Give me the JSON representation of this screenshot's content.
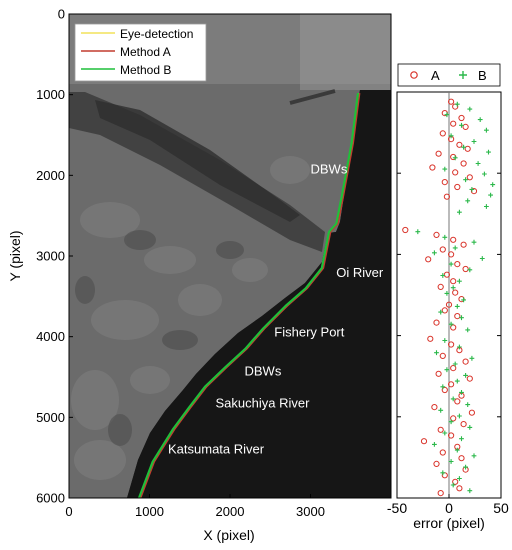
{
  "colors": {
    "eye": "#f2e25a",
    "method_a": "#c23b2f",
    "method_b": "#1fbf3a",
    "sea": "#141414",
    "land": "#6a6a6a",
    "label_text": "#ffffff"
  },
  "chart_data": [
    {
      "type": "line",
      "panel": "map",
      "xlabel": "X (pixel)",
      "ylabel": "Y (pixel)",
      "xlim": [
        0,
        4000
      ],
      "ylim": [
        6000,
        0
      ],
      "xticks": [
        "0",
        "1000",
        "2000",
        "3000"
      ],
      "yticks": [
        "0",
        "1000",
        "2000",
        "3000",
        "4000",
        "5000",
        "6000"
      ],
      "legend_position": "top-left",
      "series": [
        {
          "name": "Eye-detection",
          "color": "#f2e25a",
          "x": [
            3600,
            3520,
            3400,
            3330,
            3240,
            3150,
            2950,
            2700,
            2420,
            2200,
            1950,
            1700,
            1500,
            1300,
            1050,
            880
          ],
          "y": [
            980,
            1600,
            2250,
            2600,
            2700,
            3150,
            3400,
            3620,
            3900,
            4150,
            4380,
            4620,
            4880,
            5150,
            5550,
            6000
          ]
        },
        {
          "name": "Method A",
          "color": "#c23b2f",
          "x": [
            3610,
            3530,
            3410,
            3340,
            3250,
            3160,
            2960,
            2710,
            2430,
            2210,
            1960,
            1710,
            1510,
            1310,
            1060,
            890
          ],
          "y": [
            980,
            1600,
            2250,
            2600,
            2700,
            3150,
            3400,
            3620,
            3900,
            4150,
            4380,
            4620,
            4880,
            5150,
            5550,
            6000
          ]
        },
        {
          "name": "Method B",
          "color": "#1fbf3a",
          "x": [
            3590,
            3510,
            3390,
            3320,
            3230,
            3140,
            2940,
            2690,
            2410,
            2190,
            1940,
            1690,
            1490,
            1290,
            1040,
            870
          ],
          "y": [
            980,
            1600,
            2250,
            2600,
            2700,
            3150,
            3400,
            3620,
            3900,
            4150,
            4380,
            4620,
            4880,
            5150,
            5550,
            6000
          ]
        }
      ],
      "annotations": [
        {
          "text": "DBWs",
          "x": 3000,
          "y": 1980
        },
        {
          "text": "Oi River",
          "x": 3320,
          "y": 3260
        },
        {
          "text": "Fishery Port",
          "x": 2550,
          "y": 4000
        },
        {
          "text": "DBWs",
          "x": 2180,
          "y": 4480
        },
        {
          "text": "Sakuchiya River",
          "x": 1820,
          "y": 4880
        },
        {
          "text": "Katsumata River",
          "x": 1230,
          "y": 5450
        }
      ]
    },
    {
      "type": "scatter",
      "panel": "error",
      "xlabel": "error (pixel)",
      "xlim": [
        -50,
        50
      ],
      "ylim": [
        6000,
        1000
      ],
      "xticks": [
        "-50",
        "0",
        "50"
      ],
      "legend_position": "top",
      "series": [
        {
          "name": "A",
          "marker": "open-circle",
          "color": "#d9342b",
          "points": [
            [
              2,
              1120
            ],
            [
              6,
              1180
            ],
            [
              -4,
              1260
            ],
            [
              12,
              1320
            ],
            [
              4,
              1390
            ],
            [
              16,
              1430
            ],
            [
              -6,
              1510
            ],
            [
              2,
              1580
            ],
            [
              10,
              1650
            ],
            [
              18,
              1700
            ],
            [
              -10,
              1760
            ],
            [
              4,
              1800
            ],
            [
              14,
              1880
            ],
            [
              -16,
              1930
            ],
            [
              6,
              1990
            ],
            [
              20,
              2050
            ],
            [
              -4,
              2110
            ],
            [
              8,
              2170
            ],
            [
              24,
              2220
            ],
            [
              -2,
              2290
            ],
            [
              -42,
              2700
            ],
            [
              -12,
              2760
            ],
            [
              4,
              2820
            ],
            [
              14,
              2880
            ],
            [
              -6,
              2940
            ],
            [
              2,
              3000
            ],
            [
              -20,
              3060
            ],
            [
              8,
              3120
            ],
            [
              16,
              3180
            ],
            [
              -2,
              3250
            ],
            [
              4,
              3330
            ],
            [
              -8,
              3400
            ],
            [
              6,
              3470
            ],
            [
              12,
              3550
            ],
            [
              0,
              3620
            ],
            [
              -4,
              3690
            ],
            [
              8,
              3760
            ],
            [
              -12,
              3840
            ],
            [
              4,
              3900
            ],
            [
              -18,
              4040
            ],
            [
              2,
              4110
            ],
            [
              10,
              4180
            ],
            [
              -6,
              4250
            ],
            [
              16,
              4320
            ],
            [
              4,
              4400
            ],
            [
              -10,
              4470
            ],
            [
              20,
              4530
            ],
            [
              2,
              4600
            ],
            [
              -4,
              4670
            ],
            [
              12,
              4740
            ],
            [
              8,
              4810
            ],
            [
              -14,
              4880
            ],
            [
              22,
              4950
            ],
            [
              4,
              5020
            ],
            [
              14,
              5090
            ],
            [
              -8,
              5160
            ],
            [
              2,
              5230
            ],
            [
              -24,
              5300
            ],
            [
              8,
              5370
            ],
            [
              -6,
              5440
            ],
            [
              12,
              5510
            ],
            [
              -12,
              5580
            ],
            [
              16,
              5650
            ],
            [
              -4,
              5720
            ],
            [
              6,
              5800
            ],
            [
              10,
              5880
            ],
            [
              -8,
              5940
            ]
          ]
        },
        {
          "name": "B",
          "marker": "plus",
          "color": "#2bb84a",
          "points": [
            [
              8,
              1150
            ],
            [
              20,
              1210
            ],
            [
              -2,
              1280
            ],
            [
              30,
              1340
            ],
            [
              12,
              1410
            ],
            [
              36,
              1470
            ],
            [
              2,
              1540
            ],
            [
              24,
              1610
            ],
            [
              14,
              1680
            ],
            [
              38,
              1740
            ],
            [
              6,
              1810
            ],
            [
              28,
              1880
            ],
            [
              -4,
              1950
            ],
            [
              34,
              2010
            ],
            [
              16,
              2080
            ],
            [
              42,
              2140
            ],
            [
              22,
              2200
            ],
            [
              40,
              2270
            ],
            [
              18,
              2340
            ],
            [
              36,
              2410
            ],
            [
              10,
              2480
            ],
            [
              -30,
              2720
            ],
            [
              -4,
              2790
            ],
            [
              24,
              2850
            ],
            [
              6,
              2920
            ],
            [
              -14,
              2980
            ],
            [
              32,
              3050
            ],
            [
              2,
              3120
            ],
            [
              20,
              3190
            ],
            [
              -6,
              3260
            ],
            [
              10,
              3330
            ],
            [
              4,
              3410
            ],
            [
              -2,
              3480
            ],
            [
              14,
              3560
            ],
            [
              8,
              3640
            ],
            [
              -8,
              3710
            ],
            [
              12,
              3780
            ],
            [
              2,
              3860
            ],
            [
              18,
              3930
            ],
            [
              -4,
              4060
            ],
            [
              10,
              4140
            ],
            [
              -12,
              4210
            ],
            [
              22,
              4280
            ],
            [
              6,
              4350
            ],
            [
              -2,
              4420
            ],
            [
              16,
              4490
            ],
            [
              8,
              4560
            ],
            [
              -6,
              4630
            ],
            [
              12,
              4700
            ],
            [
              4,
              4780
            ],
            [
              18,
              4850
            ],
            [
              -8,
              4920
            ],
            [
              10,
              4990
            ],
            [
              2,
              5060
            ],
            [
              20,
              5130
            ],
            [
              -4,
              5200
            ],
            [
              12,
              5270
            ],
            [
              -14,
              5340
            ],
            [
              8,
              5410
            ],
            [
              24,
              5480
            ],
            [
              2,
              5550
            ],
            [
              16,
              5620
            ],
            [
              -6,
              5690
            ],
            [
              10,
              5760
            ],
            [
              4,
              5840
            ],
            [
              20,
              5910
            ]
          ]
        }
      ]
    }
  ]
}
